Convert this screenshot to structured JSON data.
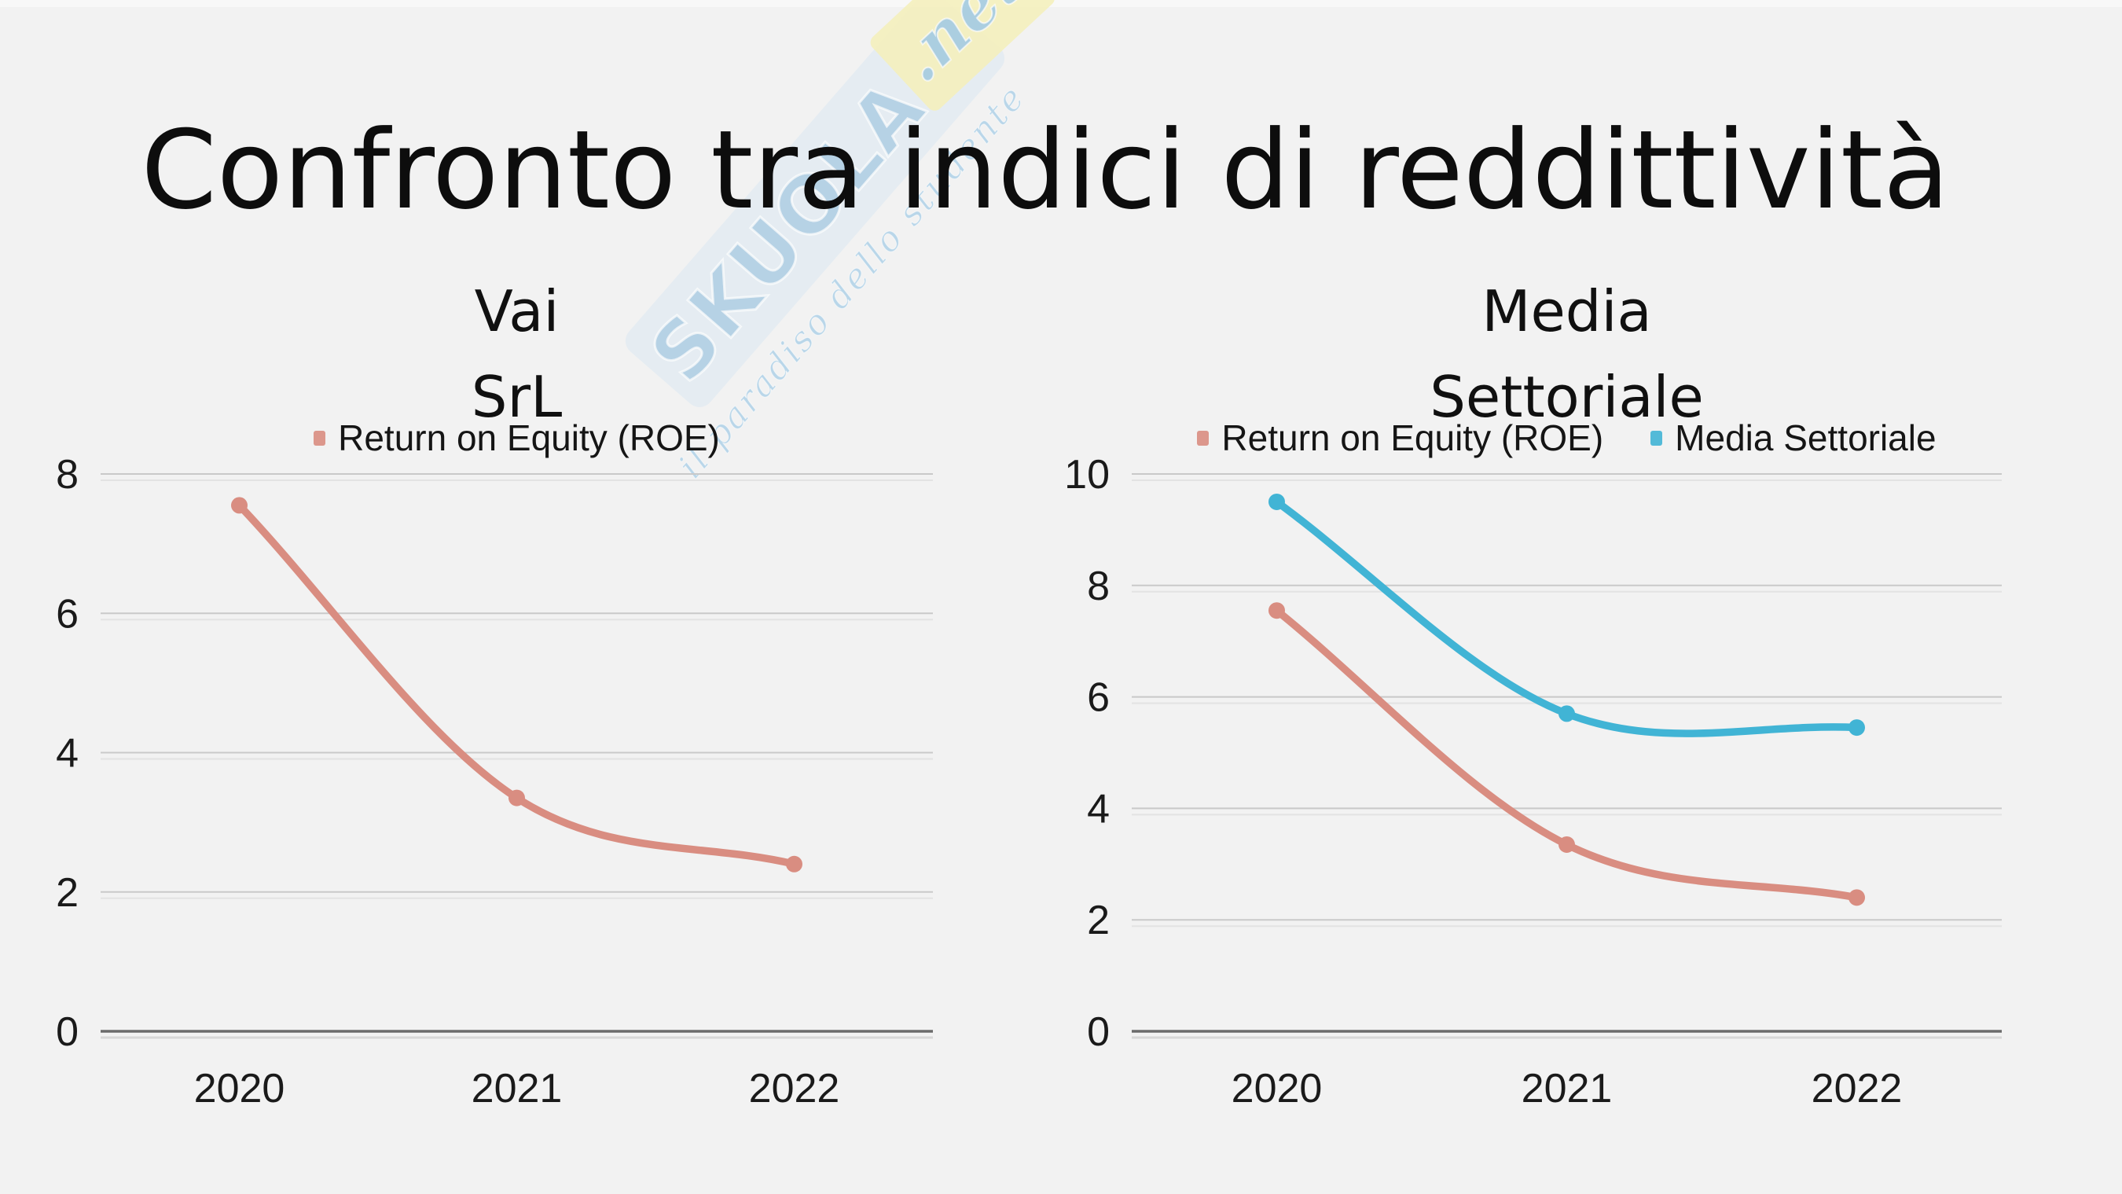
{
  "page": {
    "title": "Confronto tra indici di reddittività"
  },
  "watermark": {
    "brand": "SKUOLA",
    "tld": ".net",
    "tagline": "il paradiso dello studente"
  },
  "colors": {
    "background": "#f2f2f2",
    "grid": "#c9c9c9",
    "grid_ghost": "#e3e3e3",
    "axis": "#6b6b6b",
    "axis_ghost": "#d7d7d7",
    "text": "#1a1a1a",
    "roe": "#d98d81",
    "media": "#41b4d5"
  },
  "chart_data": [
    {
      "type": "line",
      "title_lines": [
        "Vai",
        "SrL"
      ],
      "categories": [
        "2020",
        "2021",
        "2022"
      ],
      "ylim": [
        0,
        8
      ],
      "yticks": [
        0,
        2,
        4,
        6,
        8
      ],
      "grid": true,
      "legend_position": "top",
      "series": [
        {
          "name": "Return on Equity (ROE)",
          "color_key": "roe",
          "values": [
            7.55,
            3.35,
            2.4
          ]
        }
      ]
    },
    {
      "type": "line",
      "title_lines": [
        "Media",
        "Settoriale"
      ],
      "categories": [
        "2020",
        "2021",
        "2022"
      ],
      "ylim": [
        0,
        10
      ],
      "yticks": [
        0,
        2,
        4,
        6,
        8,
        10
      ],
      "grid": true,
      "legend_position": "top",
      "series": [
        {
          "name": "Return on Equity (ROE)",
          "color_key": "roe",
          "values": [
            7.55,
            3.35,
            2.4
          ]
        },
        {
          "name": "Media Settoriale",
          "color_key": "media",
          "values": [
            9.5,
            5.7,
            5.45
          ]
        }
      ]
    }
  ]
}
